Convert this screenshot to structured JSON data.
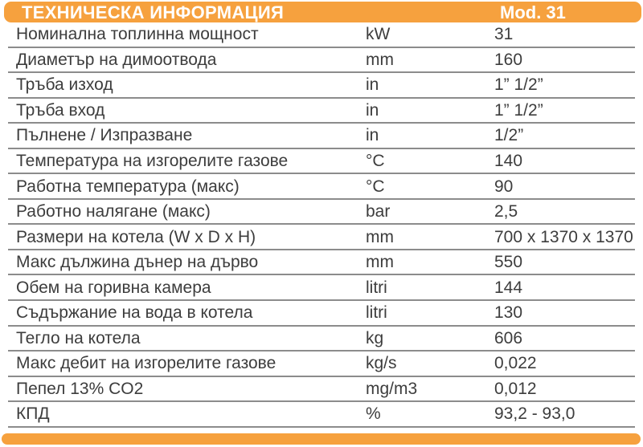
{
  "header": {
    "title": "ТЕХНИЧЕСКА ИНФОРМАЦИЯ",
    "model": "Mod. 31",
    "bar_color": "#F6A13E",
    "text_color": "#FFFFFF"
  },
  "table": {
    "columns": [
      "parameter",
      "unit",
      "value"
    ],
    "line_color": "#8C8C8C",
    "text_color": "#3D3D3D",
    "rows": [
      {
        "label": "Номинална топлинна мощност",
        "unit": "kW",
        "value": "31"
      },
      {
        "label": "Диаметър на димоотвода",
        "unit": "mm",
        "value": "160"
      },
      {
        "label": "Тръба изход",
        "unit": "in",
        "value": "1” 1/2”"
      },
      {
        "label": "Тръба вход",
        "unit": "in",
        "value": "1” 1/2”"
      },
      {
        "label": "Пълнене / Изпразване",
        "unit": "in",
        "value": "1/2”"
      },
      {
        "label": "Температура на изгорелите газове",
        "unit": "°C",
        "value": "140"
      },
      {
        "label": "Работна температура (макс)",
        "unit": "°C",
        "value": "90"
      },
      {
        "label": "Работно налягане (макс)",
        "unit": "bar",
        "value": "2,5"
      },
      {
        "label": "Размери на котела (W x D x H)",
        "unit": "mm",
        "value": "700 x 1370 x 1370"
      },
      {
        "label": "Макс дължина дънер на дърво",
        "unit": "mm",
        "value": "550"
      },
      {
        "label": "Обем на горивна камера",
        "unit": "litri",
        "value": "144"
      },
      {
        "label": "Съдържание на вода в котела",
        "unit": "litri",
        "value": "130"
      },
      {
        "label": "Тегло на котела",
        "unit": "kg",
        "value": "606"
      },
      {
        "label": "Макс дебит на изгорелите газове",
        "unit": "kg/s",
        "value": "0,022"
      },
      {
        "label": "Пепел 13% CO2",
        "unit": "mg/m3",
        "value": "0,012"
      },
      {
        "label": "КПД",
        "unit": "%",
        "value": "93,2 - 93,0"
      }
    ]
  },
  "footer": {
    "bar_color": "#F6A13E"
  }
}
